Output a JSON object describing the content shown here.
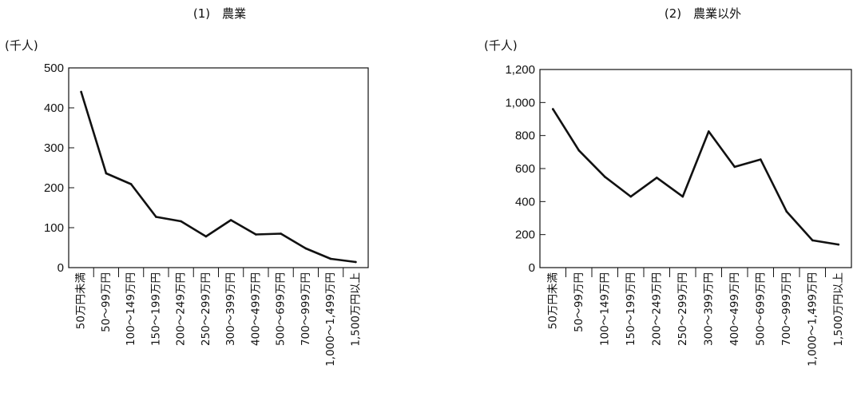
{
  "chart_data": [
    {
      "type": "line",
      "title": "(1)　農業",
      "ylabel": "(千人)",
      "xlabel": "",
      "yticks": [
        "0",
        "100",
        "200",
        "300",
        "400",
        "500"
      ],
      "ylim": [
        0,
        500
      ],
      "grid": false,
      "categories": [
        "50万円未満",
        "50～99万円",
        "100～149万円",
        "150～199万円",
        "200～249万円",
        "250～299万円",
        "300～399万円",
        "400～499万円",
        "500～699万円",
        "700～999万円",
        "1,000～1,499万円",
        "1,500万円以上"
      ],
      "series": [
        {
          "values": [
            440,
            236,
            209,
            127,
            116,
            78,
            119,
            83,
            85,
            48,
            22,
            14
          ]
        }
      ]
    },
    {
      "type": "line",
      "title": "(2)　農業以外",
      "ylabel": "(千人)",
      "xlabel": "",
      "yticks": [
        "0",
        "200",
        "400",
        "600",
        "800",
        "1,000",
        "1,200"
      ],
      "ylim": [
        0,
        1200
      ],
      "grid": false,
      "categories": [
        "50万円未満",
        "50～99万円",
        "100～149万円",
        "150～199万円",
        "200～249万円",
        "250～299万円",
        "300～399万円",
        "400～499万円",
        "500～699万円",
        "700～999万円",
        "1,000～1,499万円",
        "1,500万円以上"
      ],
      "series": [
        {
          "values": [
            960,
            710,
            550,
            430,
            545,
            430,
            825,
            610,
            655,
            340,
            165,
            140
          ]
        }
      ]
    }
  ]
}
